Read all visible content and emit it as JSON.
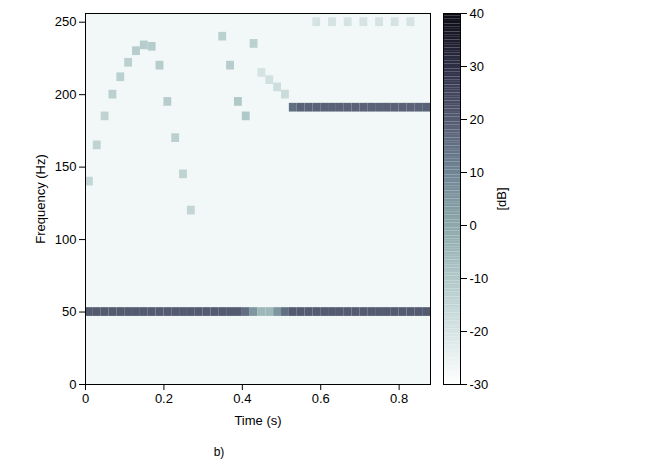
{
  "chart_data": {
    "type": "heatmap",
    "x_label": "Time (s)",
    "y_label": "Frequency (Hz)",
    "caption": "b)",
    "xlim": [
      0,
      0.88
    ],
    "xticks": [
      0,
      0.2,
      0.4,
      0.6,
      0.8
    ],
    "ylim": [
      0,
      256
    ],
    "yticks": [
      0,
      50,
      100,
      150,
      200,
      250
    ],
    "colorbar": {
      "label": "[dB]",
      "range": [
        -30,
        40
      ],
      "ticks": [
        -30,
        -20,
        -10,
        0,
        10,
        20,
        30,
        40
      ]
    },
    "background": -27,
    "cells": [
      [
        0,
        50,
        20
      ],
      [
        0.02,
        50,
        20
      ],
      [
        0.04,
        50,
        20
      ],
      [
        0.06,
        50,
        20
      ],
      [
        0.08,
        50,
        20
      ],
      [
        0.1,
        50,
        20
      ],
      [
        0.12,
        50,
        20
      ],
      [
        0.14,
        50,
        20
      ],
      [
        0.16,
        50,
        20
      ],
      [
        0.18,
        50,
        20
      ],
      [
        0.2,
        50,
        20
      ],
      [
        0.22,
        50,
        20
      ],
      [
        0.24,
        50,
        20
      ],
      [
        0.26,
        50,
        20
      ],
      [
        0.28,
        50,
        20
      ],
      [
        0.3,
        50,
        20
      ],
      [
        0.32,
        50,
        20
      ],
      [
        0.34,
        50,
        20
      ],
      [
        0.36,
        50,
        20
      ],
      [
        0.38,
        50,
        20
      ],
      [
        0.4,
        50,
        15
      ],
      [
        0.42,
        50,
        5
      ],
      [
        0.44,
        50,
        -5
      ],
      [
        0.46,
        50,
        -5
      ],
      [
        0.48,
        50,
        5
      ],
      [
        0.5,
        50,
        15
      ],
      [
        0.52,
        50,
        20
      ],
      [
        0.54,
        50,
        20
      ],
      [
        0.56,
        50,
        20
      ],
      [
        0.58,
        50,
        20
      ],
      [
        0.6,
        50,
        20
      ],
      [
        0.62,
        50,
        20
      ],
      [
        0.64,
        50,
        20
      ],
      [
        0.66,
        50,
        20
      ],
      [
        0.68,
        50,
        20
      ],
      [
        0.7,
        50,
        20
      ],
      [
        0.72,
        50,
        20
      ],
      [
        0.74,
        50,
        20
      ],
      [
        0.76,
        50,
        20
      ],
      [
        0.78,
        50,
        20
      ],
      [
        0.8,
        50,
        20
      ],
      [
        0.82,
        50,
        20
      ],
      [
        0.84,
        50,
        20
      ],
      [
        0.86,
        50,
        20
      ],
      [
        0.52,
        191,
        15
      ],
      [
        0.54,
        191,
        18
      ],
      [
        0.56,
        191,
        18
      ],
      [
        0.58,
        191,
        18
      ],
      [
        0.6,
        191,
        18
      ],
      [
        0.62,
        191,
        18
      ],
      [
        0.64,
        191,
        18
      ],
      [
        0.66,
        191,
        18
      ],
      [
        0.68,
        191,
        18
      ],
      [
        0.7,
        191,
        18
      ],
      [
        0.72,
        191,
        18
      ],
      [
        0.74,
        191,
        18
      ],
      [
        0.76,
        191,
        18
      ],
      [
        0.78,
        191,
        18
      ],
      [
        0.8,
        191,
        18
      ],
      [
        0.82,
        191,
        18
      ],
      [
        0.84,
        191,
        18
      ],
      [
        0.86,
        191,
        18
      ],
      [
        0,
        140,
        -15
      ],
      [
        0.02,
        165,
        -14
      ],
      [
        0.04,
        185,
        -14
      ],
      [
        0.06,
        200,
        -13
      ],
      [
        0.08,
        212,
        -13
      ],
      [
        0.1,
        222,
        -13
      ],
      [
        0.12,
        230,
        -12
      ],
      [
        0.14,
        234,
        -12
      ],
      [
        0.16,
        233,
        -12
      ],
      [
        0.18,
        220,
        -12
      ],
      [
        0.2,
        195,
        -12
      ],
      [
        0.22,
        170,
        -13
      ],
      [
        0.24,
        145,
        -14
      ],
      [
        0.26,
        120,
        -15
      ],
      [
        0.34,
        240,
        -13
      ],
      [
        0.36,
        220,
        -12
      ],
      [
        0.38,
        195,
        -10
      ],
      [
        0.4,
        185,
        -10
      ],
      [
        0.42,
        235,
        -13
      ],
      [
        0.44,
        215,
        -20
      ],
      [
        0.46,
        210,
        -19
      ],
      [
        0.48,
        205,
        -18
      ],
      [
        0.5,
        200,
        -17
      ],
      [
        0.58,
        250,
        -20
      ],
      [
        0.62,
        250,
        -20
      ],
      [
        0.66,
        250,
        -20
      ],
      [
        0.7,
        250,
        -20
      ],
      [
        0.74,
        250,
        -20
      ],
      [
        0.78,
        250,
        -20
      ],
      [
        0.82,
        250,
        -20
      ]
    ]
  }
}
